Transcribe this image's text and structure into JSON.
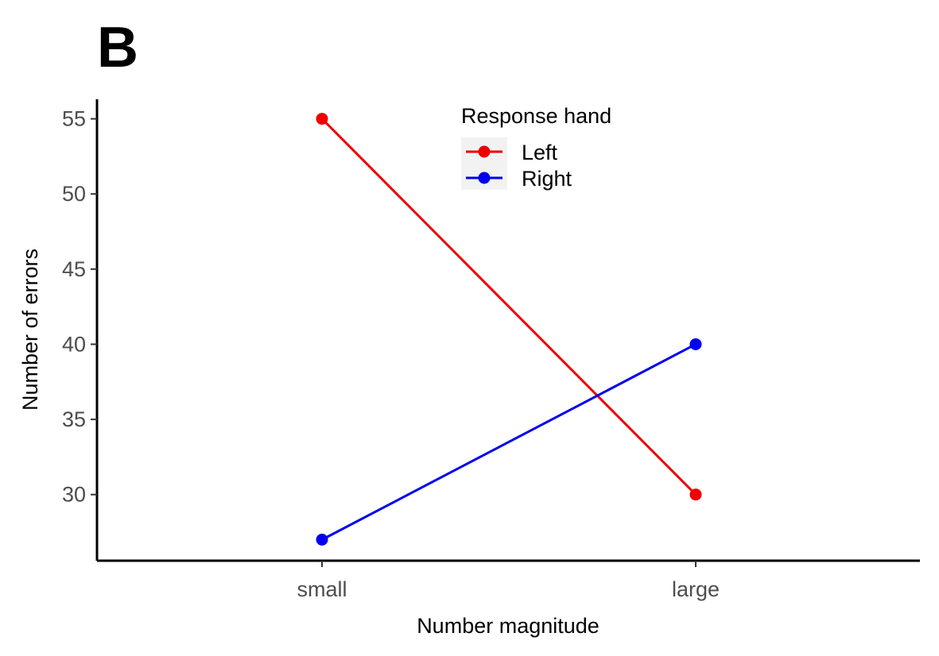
{
  "panel_label": "B",
  "chart_data": {
    "type": "line",
    "categories": [
      "small",
      "large"
    ],
    "series": [
      {
        "name": "Left",
        "values": [
          55,
          30
        ],
        "color": "#ee0000"
      },
      {
        "name": "Right",
        "values": [
          27,
          40
        ],
        "color": "#0000ee"
      }
    ],
    "title": "",
    "xlabel": "Number magnitude",
    "ylabel": "Number of errors",
    "ylim": [
      25.6,
      56.3
    ],
    "yticks": [
      30,
      35,
      40,
      45,
      50,
      55
    ],
    "grid": false,
    "legend": {
      "title": "Response hand",
      "position": "top-center"
    }
  }
}
